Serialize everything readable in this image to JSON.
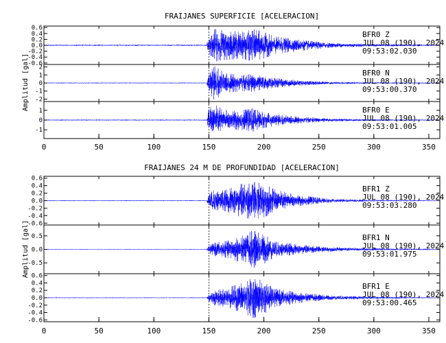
{
  "chart_data": [
    {
      "type": "line",
      "title": "FRAIJANES SUPERFICIE [ACELERACION]",
      "ylabel": "Amplitud [gal]",
      "xlim": [
        0,
        360
      ],
      "xticks": [
        0,
        50,
        100,
        150,
        200,
        250,
        300,
        350
      ],
      "marker_x": 150,
      "series_color": "#0000ff",
      "traces": [
        {
          "station": "BFR0",
          "component": "Z",
          "date": "JUL 08 (190), 2024",
          "time": "09:53:02.030",
          "ylim": [
            -0.65,
            0.65
          ],
          "yticks": [
            0.6,
            0.4,
            0.2,
            0.0,
            -0.2,
            -0.4,
            -0.6
          ],
          "yticklabels": [
            "0.6",
            "0.4",
            "0.2",
            "0.0",
            "-0.2",
            "-0.4",
            "-0.6"
          ],
          "envelope": {
            "x": [
              0,
              148,
              150,
              155,
              165,
              180,
              190,
              200,
              210,
              230,
              260,
              300,
              360
            ],
            "y": [
              0.02,
              0.02,
              0.3,
              0.55,
              0.5,
              0.45,
              0.55,
              0.45,
              0.3,
              0.2,
              0.08,
              0.04,
              0.02
            ]
          }
        },
        {
          "station": "BFR0",
          "component": "N",
          "date": "JUL 08 (190), 2024",
          "time": "09:53:00.370",
          "ylim": [
            -2.3,
            2.3
          ],
          "yticks": [
            2,
            1,
            0,
            -1,
            -2
          ],
          "yticklabels": [
            "2",
            "1",
            "0",
            "-1",
            "-2"
          ],
          "envelope": {
            "x": [
              0,
              148,
              150,
              155,
              165,
              180,
              190,
              200,
              210,
              230,
              260,
              300,
              360
            ],
            "y": [
              0.05,
              0.05,
              1.5,
              2.1,
              1.2,
              1.0,
              1.1,
              0.8,
              0.6,
              0.35,
              0.15,
              0.08,
              0.05
            ]
          }
        },
        {
          "station": "BFR0",
          "component": "E",
          "date": "JUL 08 (190), 2024",
          "time": "09:53:01.005",
          "ylim": [
            -1.9,
            1.9
          ],
          "yticks": [
            1,
            0,
            -1
          ],
          "yticklabels": [
            "1",
            "0",
            "-1"
          ],
          "envelope": {
            "x": [
              0,
              148,
              150,
              155,
              165,
              180,
              190,
              200,
              210,
              230,
              260,
              300,
              360
            ],
            "y": [
              0.05,
              0.05,
              1.2,
              1.6,
              1.0,
              1.0,
              1.2,
              0.8,
              0.6,
              0.35,
              0.15,
              0.08,
              0.05
            ]
          }
        }
      ]
    },
    {
      "type": "line",
      "title": "FRAIJANES 24 M DE PROFUNDIDAD [ACELERACION]",
      "ylabel": "Amplitud [gal]",
      "xlim": [
        0,
        360
      ],
      "xticks": [
        0,
        50,
        100,
        150,
        200,
        250,
        300,
        350
      ],
      "marker_x": 150,
      "series_color": "#0000ff",
      "traces": [
        {
          "station": "BFR1",
          "component": "Z",
          "date": "JUL 08 (190), 2024",
          "time": "09:53:03.280",
          "ylim": [
            -0.65,
            0.65
          ],
          "yticks": [
            0.6,
            0.4,
            0.2,
            0.0,
            -0.2,
            -0.4,
            -0.6
          ],
          "yticklabels": [
            "0.6",
            "0.4",
            "0.2",
            "0.0",
            "-0.2",
            "-0.4",
            "-0.6"
          ],
          "envelope": {
            "x": [
              0,
              148,
              150,
              155,
              165,
              180,
              190,
              200,
              210,
              230,
              260,
              300,
              360
            ],
            "y": [
              0.01,
              0.01,
              0.2,
              0.3,
              0.28,
              0.45,
              0.5,
              0.45,
              0.3,
              0.15,
              0.05,
              0.02,
              0.01
            ]
          }
        },
        {
          "station": "BFR1",
          "component": "N",
          "date": "JUL 08 (190), 2024",
          "time": "09:53:01.975",
          "ylim": [
            -0.9,
            0.9
          ],
          "yticks": [
            0.5,
            0.0,
            -0.5
          ],
          "yticklabels": [
            "0.5",
            "0.0",
            "-0.5"
          ],
          "envelope": {
            "x": [
              0,
              148,
              150,
              155,
              165,
              180,
              190,
              200,
              210,
              230,
              260,
              300,
              360
            ],
            "y": [
              0.01,
              0.01,
              0.15,
              0.25,
              0.3,
              0.5,
              0.7,
              0.55,
              0.3,
              0.18,
              0.08,
              0.04,
              0.02
            ]
          }
        },
        {
          "station": "BFR1",
          "component": "E",
          "date": "JUL 08 (190), 2024",
          "time": "09:53:00.465",
          "ylim": [
            -0.65,
            0.65
          ],
          "yticks": [
            0.6,
            0.4,
            0.2,
            0.0,
            -0.2,
            -0.4,
            -0.6
          ],
          "yticklabels": [
            "0.6",
            "0.4",
            "0.2",
            "0.0",
            "-0.2",
            "-0.4",
            "-0.6"
          ],
          "envelope": {
            "x": [
              0,
              148,
              150,
              155,
              165,
              180,
              190,
              200,
              210,
              230,
              260,
              300,
              360
            ],
            "y": [
              0.01,
              0.01,
              0.12,
              0.2,
              0.25,
              0.4,
              0.55,
              0.45,
              0.25,
              0.15,
              0.06,
              0.03,
              0.01
            ]
          }
        }
      ]
    }
  ]
}
